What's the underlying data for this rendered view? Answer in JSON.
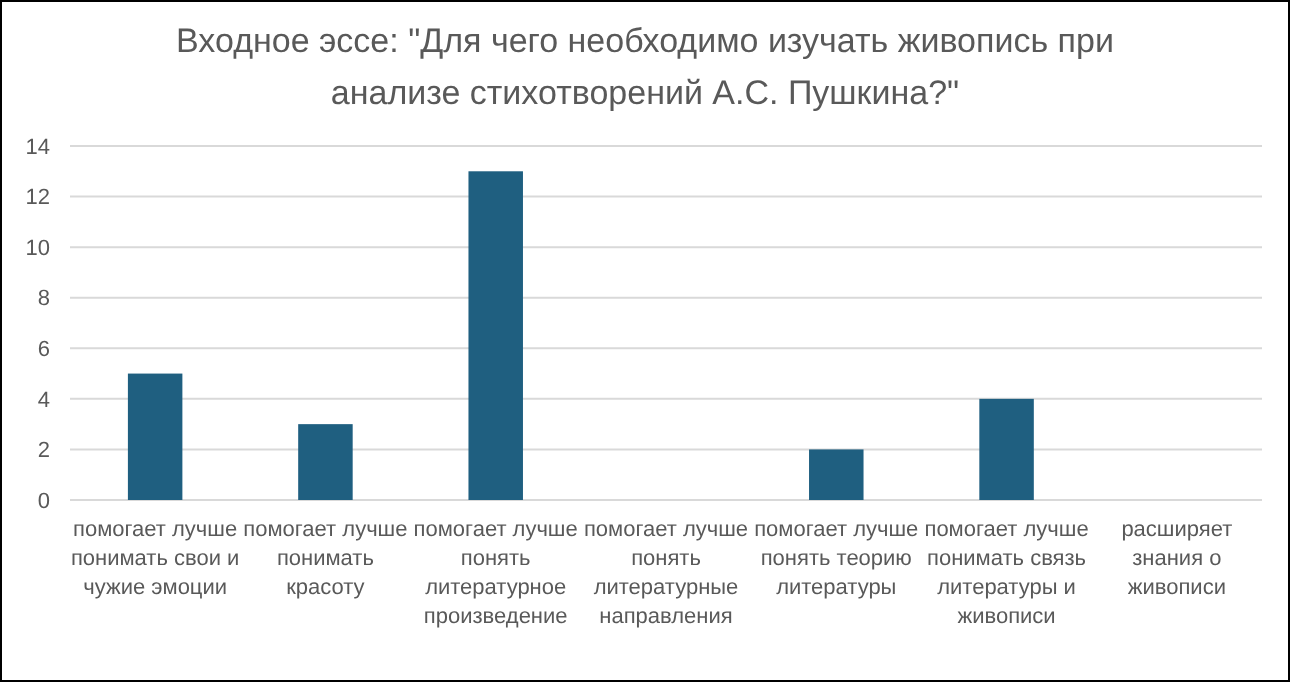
{
  "chart_data": {
    "type": "bar",
    "title": "Входное эссе: \"Для чего необходимо изучать живопись при анализе стихотворений А.С. Пушкина?\"",
    "categories": [
      "помогает лучше понимать свои и чужие эмоции",
      "помогает лучше понимать красоту",
      "помогает лучше понять литературное произведение",
      "помогает лучше понять литературные направления",
      "помогает лучше понять теорию литературы",
      "помогает лучше понимать связь литературы и живописи",
      "расширяет знания о живописи"
    ],
    "values": [
      5,
      3,
      13,
      0,
      2,
      4,
      0
    ],
    "color": "#1f5f80",
    "ylim": [
      0,
      14
    ],
    "yticks": [
      0,
      2,
      4,
      6,
      8,
      10,
      12,
      14
    ],
    "grid": "y"
  }
}
